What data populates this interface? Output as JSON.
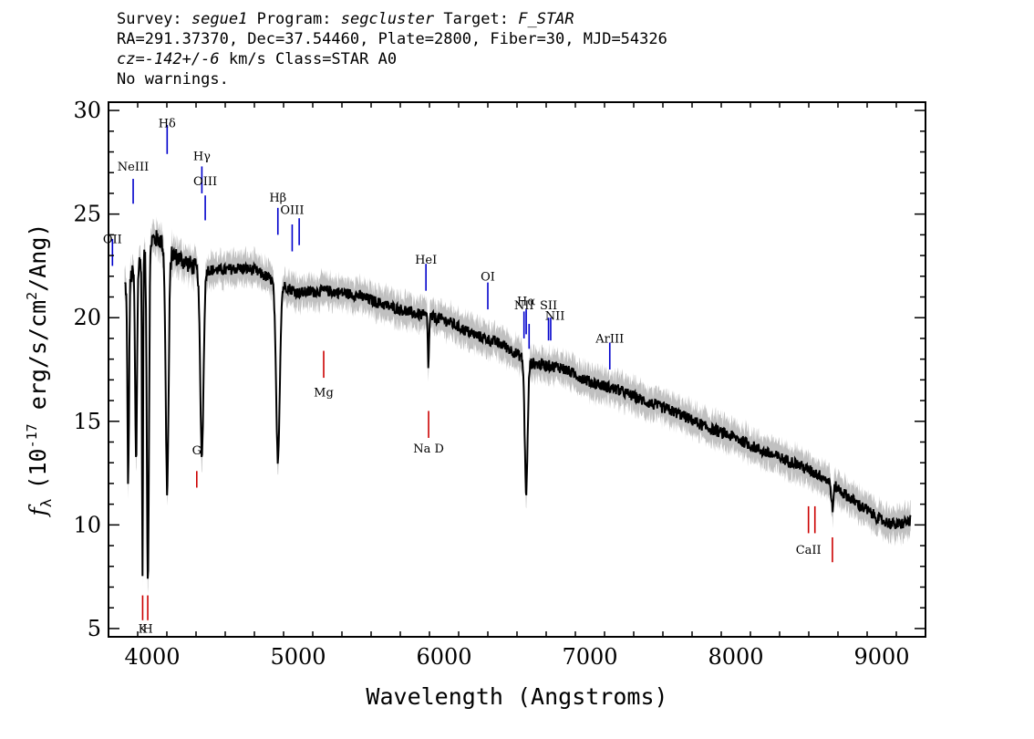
{
  "header": {
    "survey_label": "Survey:",
    "survey": "segue1",
    "program_label": "Program:",
    "program": "segcluster",
    "target_label": "Target:",
    "target": "F_STAR",
    "line2": "RA=291.37370, Dec=37.54460, Plate=2800, Fiber=30, MJD=54326",
    "cz_label": "cz=",
    "cz": "-142+/-6",
    "cz_rest": " km/s Class=STAR A0",
    "line4": "No warnings."
  },
  "colors": {
    "flux": "#000000",
    "error": "#c0c0c0",
    "emission": "#0000cc",
    "absorption": "#cc0000"
  },
  "chart_data": {
    "type": "line",
    "xlabel": "Wavelength (Angstroms)",
    "ylabel_pre": "(10",
    "ylabel_exp": "-17",
    "ylabel_mid": " erg/s/cm",
    "ylabel_exp2": "2",
    "ylabel_post": "/Ang)",
    "ylabel_symbol": "f",
    "ylabel_sub": "λ",
    "xlim": [
      3700,
      9300
    ],
    "ylim": [
      4.6,
      30.4
    ],
    "xticks": [
      4000,
      5000,
      6000,
      7000,
      8000,
      9000
    ],
    "yticks": [
      5,
      10,
      15,
      20,
      25,
      30
    ],
    "continuum": [
      [
        3810,
        21.5
      ],
      [
        3900,
        22.5
      ],
      [
        4000,
        23.8
      ],
      [
        4050,
        23.8
      ],
      [
        4100,
        23.2
      ],
      [
        4200,
        22.8
      ],
      [
        4300,
        22.4
      ],
      [
        4400,
        22.3
      ],
      [
        4500,
        22.3
      ],
      [
        4600,
        22.4
      ],
      [
        4700,
        22.3
      ],
      [
        4800,
        21.9
      ],
      [
        5000,
        21.2
      ],
      [
        5200,
        21.3
      ],
      [
        5400,
        21.1
      ],
      [
        5600,
        20.6
      ],
      [
        5800,
        20.2
      ],
      [
        6000,
        19.9
      ],
      [
        6200,
        19.2
      ],
      [
        6400,
        18.7
      ],
      [
        6600,
        17.8
      ],
      [
        6800,
        17.6
      ],
      [
        7000,
        16.9
      ],
      [
        7200,
        16.5
      ],
      [
        7400,
        15.9
      ],
      [
        7600,
        15.4
      ],
      [
        7800,
        14.7
      ],
      [
        8000,
        14.2
      ],
      [
        8200,
        13.5
      ],
      [
        8400,
        13.0
      ],
      [
        8600,
        12.3
      ],
      [
        8800,
        11.2
      ],
      [
        9000,
        10.2
      ],
      [
        9100,
        10.0
      ],
      [
        9200,
        10.2
      ]
    ],
    "absorption_features": [
      {
        "center": 3835,
        "depth": 21.2,
        "min": 12.1,
        "width": 8
      },
      {
        "center": 3889,
        "depth": 22.6,
        "min": 13.0,
        "width": 9
      },
      {
        "center": 3933,
        "depth": 22.9,
        "min": 7.8,
        "width": 5
      },
      {
        "center": 3970,
        "depth": 23.5,
        "min": 7.3,
        "width": 10
      },
      {
        "center": 4102,
        "depth": 23.4,
        "min": 11.7,
        "width": 14
      },
      {
        "center": 4340,
        "depth": 22.4,
        "min": 13.4,
        "width": 16
      },
      {
        "center": 4861,
        "depth": 21.8,
        "min": 13.2,
        "width": 18
      },
      {
        "center": 5893,
        "depth": 20.2,
        "min": 17.7,
        "width": 6
      },
      {
        "center": 6563,
        "depth": 18.0,
        "min": 11.6,
        "width": 14
      },
      {
        "center": 8662,
        "depth": 12.4,
        "min": 10.8,
        "width": 10
      }
    ],
    "line_markers": [
      {
        "name": "OII",
        "x": 3727,
        "kind": "emission",
        "y_label": 23.6,
        "y_bar": [
          22.5,
          23.8
        ]
      },
      {
        "name": "NeIII",
        "x": 3869,
        "kind": "emission",
        "y_label": 27.1,
        "y_bar": [
          25.5,
          26.7
        ]
      },
      {
        "name": "Hδ",
        "x": 4102,
        "kind": "emission",
        "y_label": 29.2,
        "y_bar": [
          27.9,
          29.3
        ]
      },
      {
        "name": "Hγ",
        "x": 4340,
        "kind": "emission",
        "y_label": 27.6,
        "y_bar": [
          26.0,
          27.3
        ]
      },
      {
        "name": "OIII",
        "x": 4363,
        "kind": "emission",
        "y_label": 26.4,
        "y_bar": [
          24.7,
          25.9
        ]
      },
      {
        "name": "Hβ",
        "x": 4861,
        "kind": "emission",
        "y_label": 25.6,
        "y_bar": [
          24.0,
          25.3
        ]
      },
      {
        "name": "OIII",
        "x": 4959,
        "kind": "emission",
        "y_label": 25.0,
        "y_bar": [
          23.2,
          24.5
        ]
      },
      {
        "name": "OIII_b",
        "x": 5007,
        "kind": "emission",
        "y_label": null,
        "y_bar": [
          23.5,
          24.8
        ]
      },
      {
        "name": "HeI",
        "x": 5876,
        "kind": "emission",
        "y_label": 22.6,
        "y_bar": [
          21.3,
          22.6
        ]
      },
      {
        "name": "OI",
        "x": 6300,
        "kind": "emission",
        "y_label": 21.8,
        "y_bar": [
          20.4,
          21.7
        ]
      },
      {
        "name": "NII",
        "x": 6548,
        "kind": "emission",
        "y_label": 20.4,
        "y_bar": [
          19.0,
          20.3
        ]
      },
      {
        "name": "Hα",
        "x": 6563,
        "kind": "emission",
        "y_label": 20.6,
        "y_bar": [
          19.2,
          20.4
        ]
      },
      {
        "name": "NII_b",
        "x": 6583,
        "kind": "emission",
        "y_label": null,
        "y_bar": [
          18.5,
          19.7
        ]
      },
      {
        "name": "SII",
        "x": 6716,
        "kind": "emission",
        "y_label": 20.4,
        "y_bar": [
          18.9,
          20.0
        ]
      },
      {
        "name": "SII_b",
        "x": 6731,
        "kind": "emission",
        "y_label": null,
        "y_bar": [
          18.9,
          20.0
        ]
      },
      {
        "name": "NII",
        "x": 6760,
        "kind": "emission",
        "y_label": 19.9,
        "y_bar": null
      },
      {
        "name": "ArIII",
        "x": 7136,
        "kind": "emission",
        "y_label": 18.8,
        "y_bar": [
          17.5,
          18.8
        ]
      },
      {
        "name": "K",
        "x": 3934,
        "kind": "absorption",
        "y_label": 4.8,
        "y_bar": [
          5.4,
          6.6
        ]
      },
      {
        "name": "H",
        "x": 3969,
        "kind": "absorption",
        "y_label": 4.8,
        "y_bar": [
          5.4,
          6.6
        ]
      },
      {
        "name": "G",
        "x": 4305,
        "kind": "absorption",
        "y_label": 13.4,
        "y_bar": [
          11.8,
          12.6
        ]
      },
      {
        "name": "Mg",
        "x": 5175,
        "kind": "absorption",
        "y_label": 16.2,
        "y_bar": [
          17.1,
          18.4
        ]
      },
      {
        "name": "Na D",
        "x": 5894,
        "kind": "absorption",
        "y_label": 13.5,
        "y_bar": [
          14.2,
          15.5
        ]
      },
      {
        "name": "CaII",
        "x": 8498,
        "kind": "absorption",
        "y_label": 8.6,
        "y_bar": [
          9.6,
          10.9
        ]
      },
      {
        "name": "CaII_b",
        "x": 8542,
        "kind": "absorption",
        "y_label": null,
        "y_bar": [
          9.6,
          10.9
        ]
      },
      {
        "name": "CaII_c",
        "x": 8662,
        "kind": "absorption",
        "y_label": null,
        "y_bar": [
          8.2,
          9.4
        ]
      }
    ]
  }
}
